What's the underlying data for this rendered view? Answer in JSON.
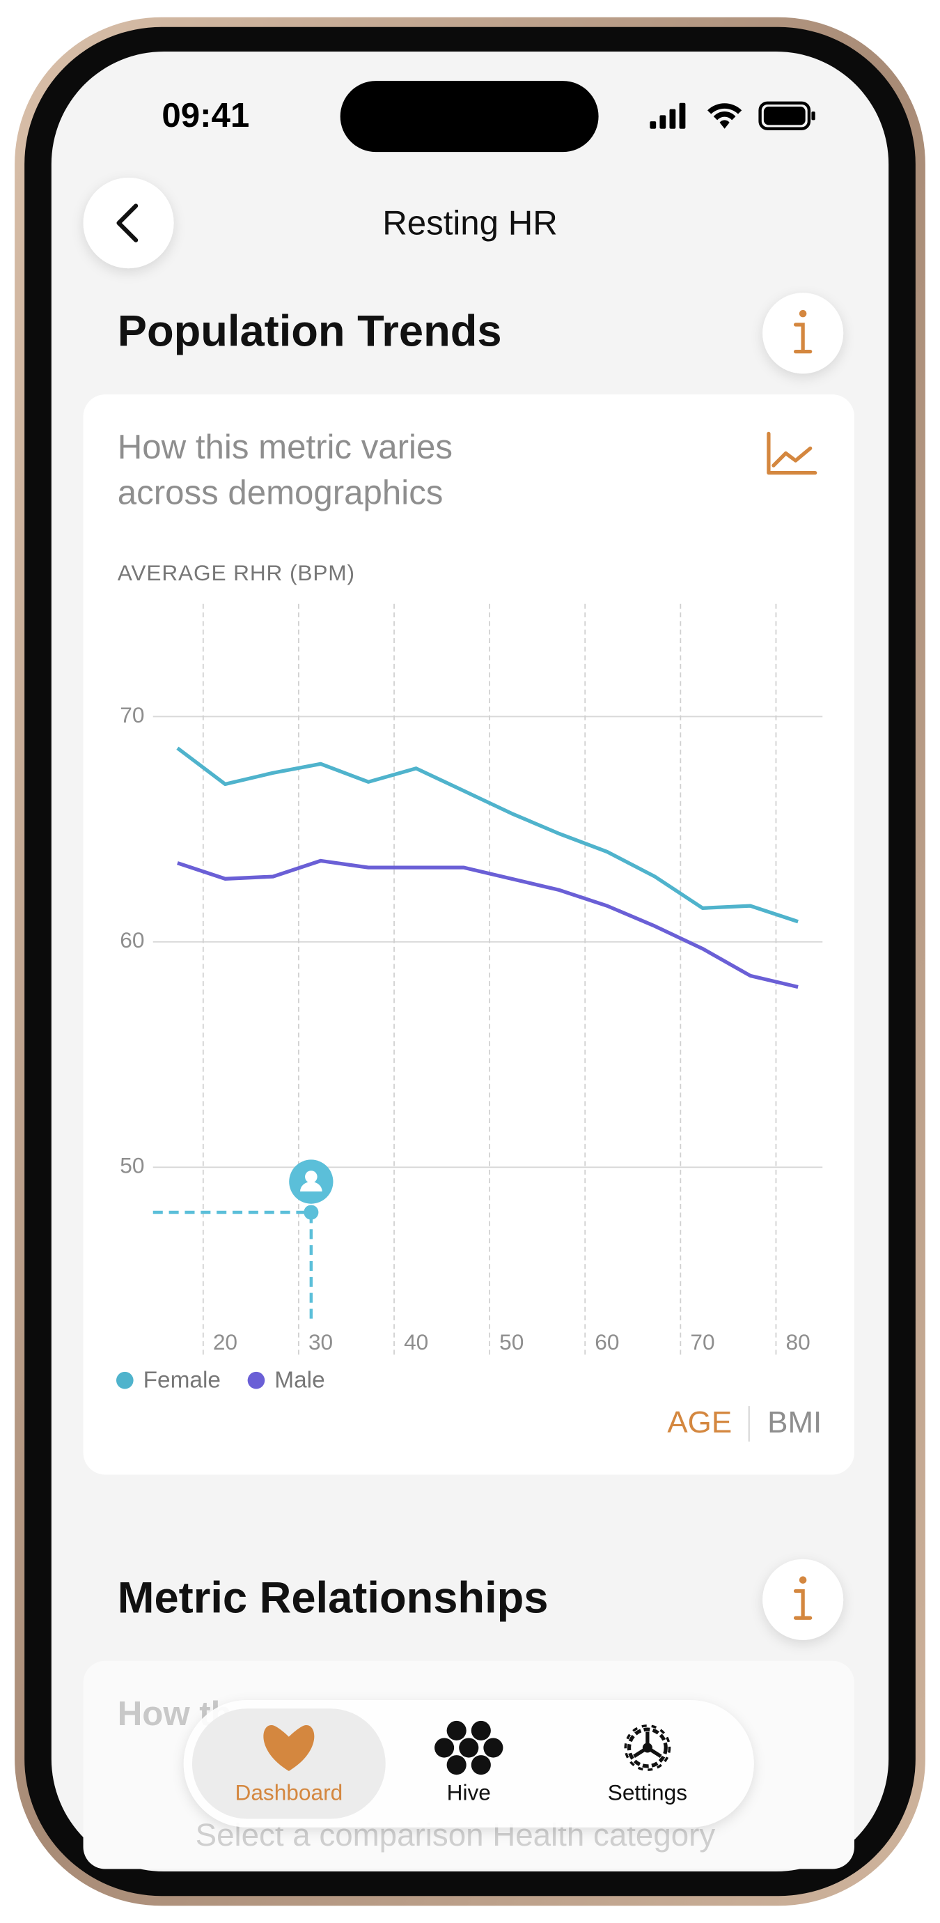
{
  "status_bar": {
    "time": "09:41"
  },
  "nav": {
    "title": "Resting HR"
  },
  "section_1": {
    "title": "Population Trends",
    "subtitle": "How this metric varies across demographics"
  },
  "chart_data": {
    "type": "line",
    "y_label": "AVERAGE RHR (BPM)",
    "x": [
      15,
      20,
      25,
      30,
      35,
      40,
      45,
      50,
      55,
      60,
      65,
      70,
      75,
      80
    ],
    "series": [
      {
        "name": "Female",
        "color": "#4fb3cc",
        "values": [
          68.6,
          67.0,
          67.5,
          67.9,
          67.1,
          67.7,
          66.7,
          65.7,
          64.8,
          64.0,
          62.9,
          61.5,
          61.6,
          60.9
        ]
      },
      {
        "name": "Male",
        "color": "#6a5fd6",
        "values": [
          63.5,
          62.8,
          62.9,
          63.6,
          63.3,
          63.3,
          63.3,
          62.8,
          62.3,
          61.6,
          60.7,
          59.7,
          58.5,
          58.0
        ]
      }
    ],
    "user_point": {
      "x": 29,
      "y": 48,
      "color": "#5bbfd9"
    },
    "xlim": [
      12,
      83
    ],
    "xticks": [
      20,
      30,
      40,
      50,
      60,
      70,
      80
    ],
    "ylim": [
      43,
      75
    ],
    "yticks": [
      50,
      60,
      70
    ],
    "grid": true
  },
  "toggle": {
    "options": [
      "AGE",
      "BMI"
    ],
    "selected": 0
  },
  "section_2": {
    "title": "Metric Relationships",
    "subtitle_partial": "How th",
    "prompt": "Select a comparison Health category"
  },
  "tab_bar": {
    "tabs": [
      "Dashboard",
      "Hive",
      "Settings"
    ],
    "selected": 0
  }
}
